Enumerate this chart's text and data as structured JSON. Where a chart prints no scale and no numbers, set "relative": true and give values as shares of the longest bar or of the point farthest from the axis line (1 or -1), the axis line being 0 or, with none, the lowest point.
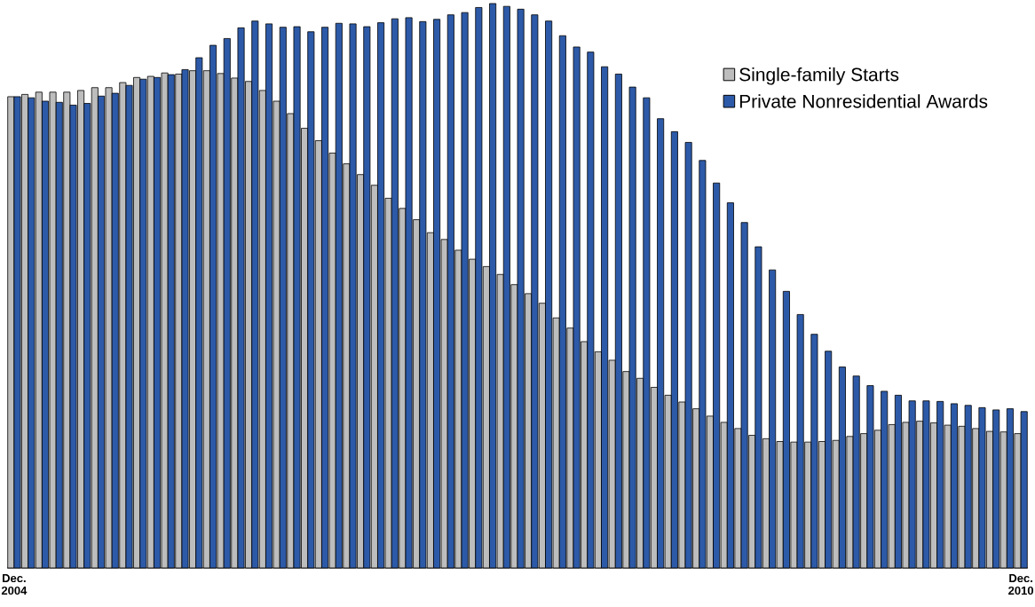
{
  "chart_data": {
    "type": "bar",
    "relative": true,
    "legend": "top right",
    "categories": [
      "Dec. 2004",
      null,
      null,
      null,
      null,
      null,
      null,
      null,
      null,
      null,
      null,
      null,
      null,
      null,
      null,
      null,
      null,
      null,
      null,
      null,
      null,
      null,
      null,
      null,
      null,
      null,
      null,
      null,
      null,
      null,
      null,
      null,
      null,
      null,
      null,
      null,
      null,
      null,
      null,
      null,
      null,
      null,
      null,
      null,
      null,
      null,
      null,
      null,
      null,
      null,
      null,
      null,
      null,
      null,
      null,
      null,
      null,
      null,
      null,
      null,
      null,
      null,
      null,
      null,
      null,
      null,
      null,
      null,
      null,
      null,
      null,
      null,
      "Dec. 2010"
    ],
    "series": [
      {
        "name": "Single-family Starts",
        "color": "#bdbdbd",
        "values": [
          0.835,
          0.839,
          0.843,
          0.843,
          0.843,
          0.846,
          0.851,
          0.851,
          0.86,
          0.869,
          0.871,
          0.877,
          0.875,
          0.881,
          0.881,
          0.876,
          0.868,
          0.862,
          0.846,
          0.827,
          0.805,
          0.779,
          0.757,
          0.735,
          0.716,
          0.697,
          0.678,
          0.655,
          0.637,
          0.617,
          0.594,
          0.582,
          0.563,
          0.547,
          0.534,
          0.52,
          0.502,
          0.486,
          0.469,
          0.443,
          0.425,
          0.401,
          0.383,
          0.368,
          0.348,
          0.336,
          0.32,
          0.306,
          0.294,
          0.282,
          0.269,
          0.258,
          0.247,
          0.235,
          0.229,
          0.224,
          0.223,
          0.223,
          0.224,
          0.226,
          0.233,
          0.238,
          0.244,
          0.254,
          0.258,
          0.26,
          0.257,
          0.253,
          0.251,
          0.247,
          0.242,
          0.241,
          0.238
        ]
      },
      {
        "name": "Private Nonresidential Awards",
        "color": "#2d5aa8",
        "values": [
          0.835,
          0.833,
          0.827,
          0.825,
          0.82,
          0.823,
          0.836,
          0.841,
          0.855,
          0.866,
          0.869,
          0.874,
          0.883,
          0.904,
          0.926,
          0.938,
          0.957,
          0.969,
          0.964,
          0.958,
          0.959,
          0.95,
          0.958,
          0.965,
          0.964,
          0.959,
          0.966,
          0.973,
          0.975,
          0.968,
          0.972,
          0.98,
          0.984,
          0.993,
          1.0,
          0.995,
          0.99,
          0.98,
          0.969,
          0.943,
          0.923,
          0.914,
          0.888,
          0.875,
          0.852,
          0.833,
          0.796,
          0.773,
          0.754,
          0.722,
          0.682,
          0.647,
          0.612,
          0.569,
          0.528,
          0.49,
          0.449,
          0.414,
          0.384,
          0.356,
          0.34,
          0.323,
          0.313,
          0.306,
          0.296,
          0.296,
          0.295,
          0.291,
          0.288,
          0.284,
          0.28,
          0.282,
          0.277
        ]
      }
    ]
  }
}
